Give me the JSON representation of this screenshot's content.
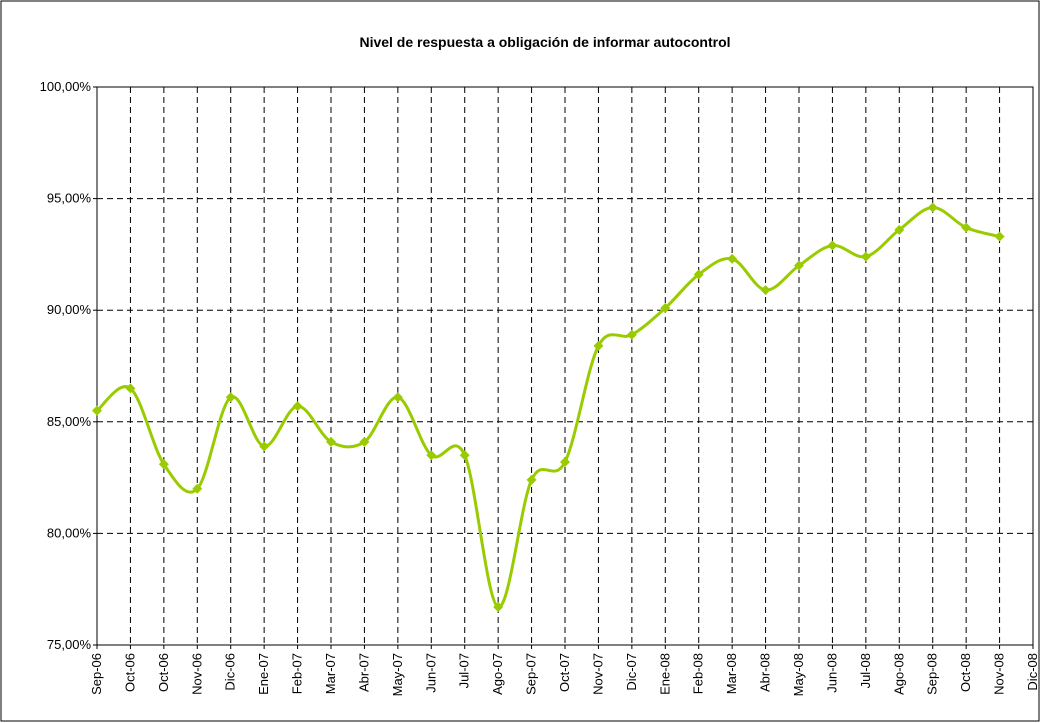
{
  "chart_data": {
    "type": "line",
    "title": "Nivel de respuesta a obligación de informar autocontrol",
    "categories": [
      "Sep-06",
      "Oct-06",
      "Oct-06",
      "Nov-06",
      "Dic-06",
      "Ene-07",
      "Feb-07",
      "Mar-07",
      "Abr-07",
      "May-07",
      "Jun-07",
      "Jul-07",
      "Ago-07",
      "Sep-07",
      "Oct-07",
      "Nov-07",
      "Dic-07",
      "Ene-08",
      "Feb-08",
      "Mar-08",
      "Abr-08",
      "May-08",
      "Jun-08",
      "Jul-08",
      "Ago-08",
      "Sep-08",
      "Oct-08",
      "Nov-08",
      "Dic-08"
    ],
    "series": [
      {
        "name": "Nivel de respuesta",
        "color": "#99cc00",
        "values": [
          85.5,
          86.5,
          83.1,
          82.0,
          86.1,
          83.9,
          85.7,
          84.1,
          84.1,
          86.1,
          83.5,
          83.5,
          76.7,
          82.4,
          83.2,
          88.4,
          88.9,
          90.1,
          91.6,
          92.3,
          90.9,
          92.0,
          92.9,
          92.4,
          93.6,
          94.6,
          93.7,
          93.3,
          null
        ]
      }
    ],
    "ylim": [
      75,
      100
    ],
    "yticks": [
      {
        "value": 75,
        "label": "75,00%"
      },
      {
        "value": 80,
        "label": "80,00%"
      },
      {
        "value": 85,
        "label": "85,00%"
      },
      {
        "value": 90,
        "label": "90,00%"
      },
      {
        "value": 95,
        "label": "95,00%"
      },
      {
        "value": 100,
        "label": "100,00%"
      }
    ],
    "grid": true
  }
}
